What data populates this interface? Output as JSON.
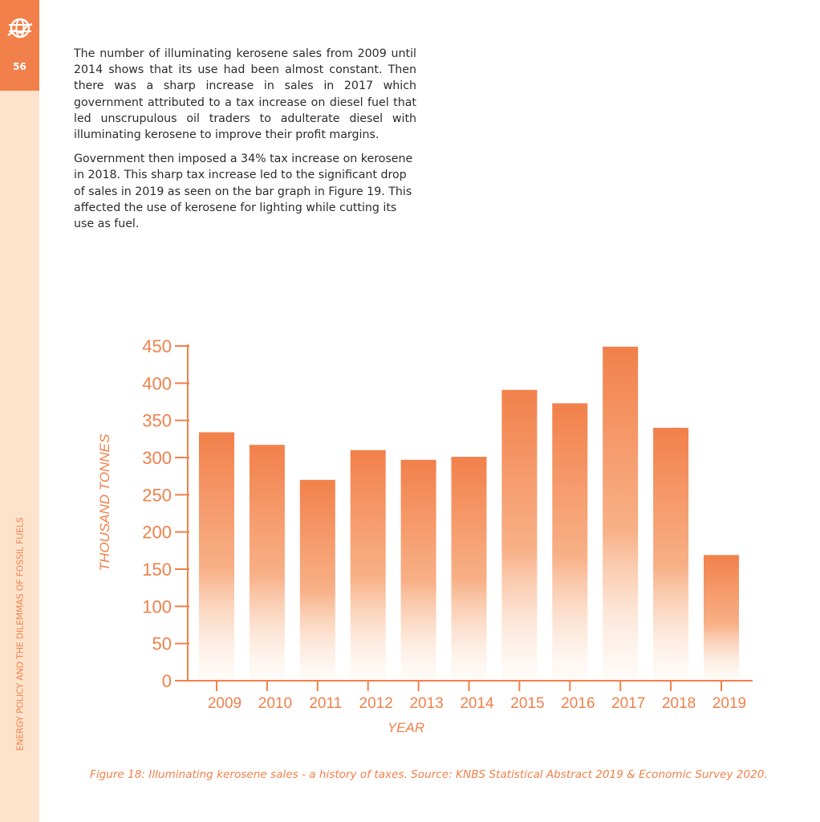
{
  "page": {
    "number": "56",
    "side_title": "ENERGY POLICY AND THE DILEMMAS OF FOSSIL FUELS",
    "logo_icon": "globe-icon",
    "accent_color": "#f2804a",
    "side_strip_color": "#fde3cc",
    "paragraphs": [
      "The number of illuminating kerosene sales from 2009 until 2014 shows that its use had been almost constant. Then there was a sharp increase in sales in 2017 which government attributed to a tax increase on diesel fuel that led unscrupulous oil traders to adulterate diesel with illuminating kerosene to improve their profit margins.",
      "Government then imposed a 34% tax increase on kerosene in 2018. This sharp tax increase led to the significant drop of sales in 2019 as seen on the bar graph in Figure 19.  This affected the use of kerosene for lighting while cutting its use as fuel."
    ],
    "caption": "Figure 18: Illuminating kerosene sales - a history of taxes. Source: KNBS Statistical Abstract 2019 & Economic Survey 2020."
  },
  "chart_data": {
    "type": "bar",
    "categories": [
      "2009",
      "2010",
      "2011",
      "2012",
      "2013",
      "2014",
      "2015",
      "2016",
      "2017",
      "2018",
      "2019"
    ],
    "values": [
      334,
      317,
      270,
      310,
      297,
      301,
      391,
      373,
      449,
      340,
      169
    ],
    "xlabel": "YEAR",
    "ylabel": "THOUSAND TONNES",
    "ylim": [
      0,
      450
    ],
    "yticks": [
      0,
      50,
      100,
      150,
      200,
      250,
      300,
      350,
      400,
      450
    ],
    "grid": false,
    "bar_color": "#f2804a",
    "bar_fill": "vertical gradient fading to white at base"
  }
}
